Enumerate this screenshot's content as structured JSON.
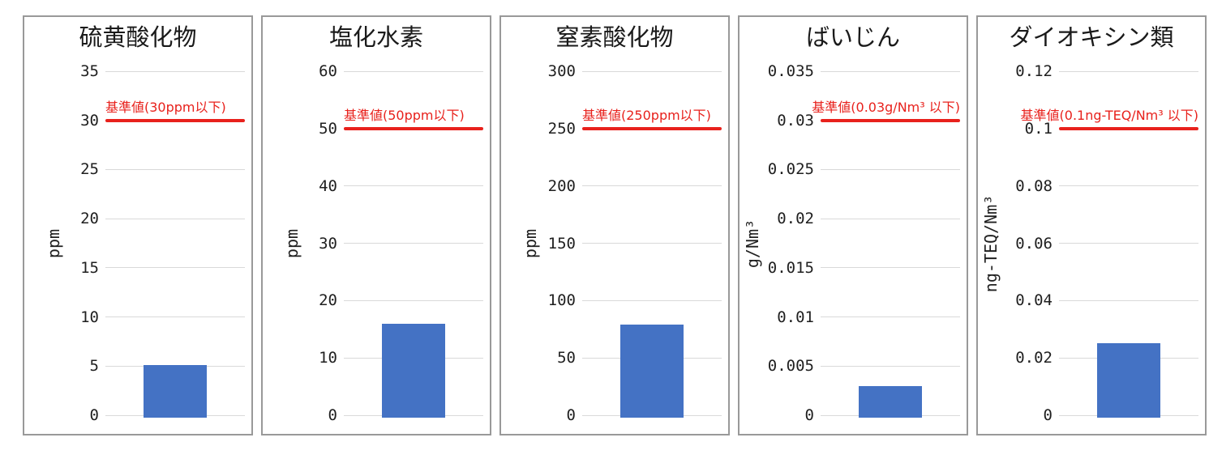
{
  "page": {
    "background": "#ffffff",
    "colors": {
      "bar": "#4472C4",
      "limit": "#E8211C",
      "grid": "#D9D9D9",
      "panel_border": "#999999",
      "text": "#1F1F1F"
    }
  },
  "chart_data": [
    {
      "name": "sulfur-oxides",
      "type": "bar",
      "title": "硫黄酸化物",
      "ylabel": "ppm",
      "ylim": [
        0,
        35
      ],
      "yticks": [
        0,
        5,
        10,
        15,
        20,
        25,
        30,
        35
      ],
      "tick_labels": [
        "0",
        "5",
        "10",
        "15",
        "20",
        "25",
        "30",
        "35"
      ],
      "grid": true,
      "legend": "none",
      "limit": {
        "value": 30,
        "label": "基準値(30ppm以下)",
        "align": "left"
      },
      "values": [
        5.1
      ],
      "bar_color": "#4472C4",
      "limit_color": "#E8211C"
    },
    {
      "name": "hydrogen-chloride",
      "type": "bar",
      "title": "塩化水素",
      "ylabel": "ppm",
      "ylim": [
        0,
        60
      ],
      "yticks": [
        0,
        10,
        20,
        30,
        40,
        50,
        60
      ],
      "tick_labels": [
        "0",
        "10",
        "20",
        "30",
        "40",
        "50",
        "60"
      ],
      "grid": true,
      "legend": "none",
      "limit": {
        "value": 50,
        "label": "基準値(50ppm以下)",
        "align": "left"
      },
      "values": [
        16
      ],
      "bar_color": "#4472C4",
      "limit_color": "#E8211C"
    },
    {
      "name": "nitrogen-oxides",
      "type": "bar",
      "title": "窒素酸化物",
      "ylabel": "ppm",
      "ylim": [
        0,
        300
      ],
      "yticks": [
        0,
        50,
        100,
        150,
        200,
        250,
        300
      ],
      "tick_labels": [
        "0",
        "50",
        "100",
        "150",
        "200",
        "250",
        "300"
      ],
      "grid": true,
      "legend": "none",
      "limit": {
        "value": 250,
        "label": "基準値(250ppm以下)",
        "align": "left"
      },
      "values": [
        79
      ],
      "bar_color": "#4472C4",
      "limit_color": "#E8211C"
    },
    {
      "name": "dust",
      "type": "bar",
      "title": "ばいじん",
      "ylabel": "g/Nm³",
      "ylim": [
        0,
        0.035
      ],
      "yticks": [
        0,
        0.005,
        0.01,
        0.015,
        0.02,
        0.025,
        0.03,
        0.035
      ],
      "tick_labels": [
        "0",
        "0.005",
        "0.01",
        "0.015",
        "0.02",
        "0.025",
        "0.03",
        "0.035"
      ],
      "grid": true,
      "legend": "none",
      "limit": {
        "value": 0.03,
        "label": "基準値(0.03g/Nm³ 以下)",
        "align": "right"
      },
      "values": [
        0.003
      ],
      "bar_color": "#4472C4",
      "limit_color": "#E8211C"
    },
    {
      "name": "dioxins",
      "type": "bar",
      "title": "ダイオキシン類",
      "ylabel": "ng-TEQ/Nm³",
      "ylim": [
        0,
        0.12
      ],
      "yticks": [
        0,
        0.02,
        0.04,
        0.06,
        0.08,
        0.1,
        0.12
      ],
      "tick_labels": [
        "0",
        "0.02",
        "0.04",
        "0.06",
        "0.08",
        "0.1",
        "0.12"
      ],
      "grid": true,
      "legend": "none",
      "limit": {
        "value": 0.1,
        "label": "基準値(0.1ng-TEQ/Nm³ 以下)",
        "align": "right"
      },
      "values": [
        0.025
      ],
      "bar_color": "#4472C4",
      "limit_color": "#E8211C"
    }
  ]
}
